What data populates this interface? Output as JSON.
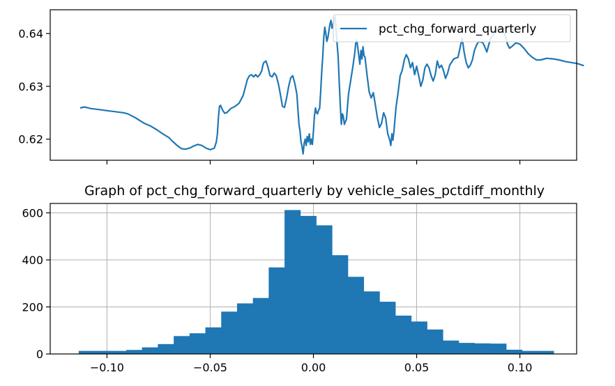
{
  "chart_data": [
    {
      "type": "line",
      "title": "",
      "legend": {
        "entries": [
          "pct_chg_forward_quarterly"
        ],
        "placement": "top-right"
      },
      "xlim": [
        -0.1275,
        0.1275
      ],
      "ylim": [
        0.616,
        0.6445
      ],
      "x_ticks": [
        -0.1,
        -0.05,
        0.0,
        0.05,
        0.1
      ],
      "y_ticks": [
        0.62,
        0.63,
        0.64
      ],
      "y_tick_labels": [
        "0.62",
        "0.63",
        "0.64"
      ],
      "grid": false,
      "series": [
        {
          "name": "pct_chg_forward_quarterly",
          "color": "#1f77b4",
          "points": [
            [
              -0.113,
              0.6259
            ],
            [
              -0.111,
              0.6261
            ],
            [
              -0.108,
              0.6258
            ],
            [
              -0.104,
              0.6256
            ],
            [
              -0.1,
              0.6254
            ],
            [
              -0.096,
              0.6252
            ],
            [
              -0.092,
              0.625
            ],
            [
              -0.09,
              0.6248
            ],
            [
              -0.088,
              0.6244
            ],
            [
              -0.086,
              0.624
            ],
            [
              -0.084,
              0.6235
            ],
            [
              -0.082,
              0.623
            ],
            [
              -0.079,
              0.6225
            ],
            [
              -0.076,
              0.6218
            ],
            [
              -0.073,
              0.621
            ],
            [
              -0.07,
              0.6203
            ],
            [
              -0.068,
              0.6195
            ],
            [
              -0.066,
              0.6188
            ],
            [
              -0.064,
              0.6182
            ],
            [
              -0.062,
              0.6181
            ],
            [
              -0.06,
              0.6183
            ],
            [
              -0.058,
              0.6187
            ],
            [
              -0.056,
              0.619
            ],
            [
              -0.054,
              0.6188
            ],
            [
              -0.052,
              0.6183
            ],
            [
              -0.05,
              0.618
            ],
            [
              -0.048,
              0.6183
            ],
            [
              -0.047,
              0.6195
            ],
            [
              -0.0465,
              0.621
            ],
            [
              -0.046,
              0.6242
            ],
            [
              -0.0455,
              0.6262
            ],
            [
              -0.045,
              0.6264
            ],
            [
              -0.044,
              0.6255
            ],
            [
              -0.043,
              0.6249
            ],
            [
              -0.042,
              0.625
            ],
            [
              -0.04,
              0.6258
            ],
            [
              -0.038,
              0.6262
            ],
            [
              -0.036,
              0.6268
            ],
            [
              -0.034,
              0.6283
            ],
            [
              -0.033,
              0.6298
            ],
            [
              -0.032,
              0.6313
            ],
            [
              -0.031,
              0.632
            ],
            [
              -0.03,
              0.6322
            ],
            [
              -0.029,
              0.6318
            ],
            [
              -0.028,
              0.6322
            ],
            [
              -0.027,
              0.6318
            ],
            [
              -0.026,
              0.6322
            ],
            [
              -0.025,
              0.633
            ],
            [
              -0.0245,
              0.634
            ],
            [
              -0.024,
              0.6345
            ],
            [
              -0.023,
              0.6348
            ],
            [
              -0.022,
              0.6336
            ],
            [
              -0.021,
              0.632
            ],
            [
              -0.02,
              0.6318
            ],
            [
              -0.019,
              0.6325
            ],
            [
              -0.018,
              0.632
            ],
            [
              -0.017,
              0.6305
            ],
            [
              -0.016,
              0.6285
            ],
            [
              -0.015,
              0.6262
            ],
            [
              -0.014,
              0.626
            ],
            [
              -0.013,
              0.6278
            ],
            [
              -0.012,
              0.63
            ],
            [
              -0.011,
              0.6316
            ],
            [
              -0.01,
              0.632
            ],
            [
              -0.009,
              0.6305
            ],
            [
              -0.008,
              0.6285
            ],
            [
              -0.0075,
              0.6255
            ],
            [
              -0.007,
              0.6228
            ],
            [
              -0.0065,
              0.6215
            ],
            [
              -0.006,
              0.6195
            ],
            [
              -0.0055,
              0.6186
            ],
            [
              -0.005,
              0.6172
            ],
            [
              -0.0045,
              0.6192
            ],
            [
              -0.004,
              0.62
            ],
            [
              -0.0035,
              0.6188
            ],
            [
              -0.003,
              0.6205
            ],
            [
              -0.0025,
              0.6195
            ],
            [
              -0.002,
              0.621
            ],
            [
              -0.0015,
              0.619
            ],
            [
              -0.001,
              0.62
            ],
            [
              -0.0005,
              0.619
            ],
            [
              0.0,
              0.6215
            ],
            [
              0.0005,
              0.6245
            ],
            [
              0.001,
              0.6259
            ],
            [
              0.0015,
              0.625
            ],
            [
              0.002,
              0.6248
            ],
            [
              0.0025,
              0.6255
            ],
            [
              0.003,
              0.6258
            ],
            [
              0.0035,
              0.629
            ],
            [
              0.004,
              0.6325
            ],
            [
              0.0045,
              0.6355
            ],
            [
              0.005,
              0.6392
            ],
            [
              0.0055,
              0.6412
            ],
            [
              0.006,
              0.64
            ],
            [
              0.0065,
              0.6385
            ],
            [
              0.007,
              0.6392
            ],
            [
              0.0075,
              0.6405
            ],
            [
              0.008,
              0.6418
            ],
            [
              0.0085,
              0.6425
            ],
            [
              0.009,
              0.641
            ],
            [
              0.0095,
              0.6415
            ],
            [
              0.01,
              0.6428
            ],
            [
              0.0105,
              0.6432
            ],
            [
              0.011,
              0.6405
            ],
            [
              0.0115,
              0.638
            ],
            [
              0.012,
              0.6355
            ],
            [
              0.0125,
              0.6308
            ],
            [
              0.013,
              0.6265
            ],
            [
              0.0135,
              0.6228
            ],
            [
              0.014,
              0.6248
            ],
            [
              0.0145,
              0.6243
            ],
            [
              0.015,
              0.6228
            ],
            [
              0.016,
              0.6238
            ],
            [
              0.017,
              0.6285
            ],
            [
              0.018,
              0.631
            ],
            [
              0.019,
              0.6335
            ],
            [
              0.02,
              0.6362
            ],
            [
              0.0205,
              0.6382
            ],
            [
              0.021,
              0.6388
            ],
            [
              0.0215,
              0.6372
            ],
            [
              0.022,
              0.6358
            ],
            [
              0.0225,
              0.6342
            ],
            [
              0.023,
              0.6368
            ],
            [
              0.0235,
              0.6352
            ],
            [
              0.024,
              0.6375
            ],
            [
              0.0245,
              0.6358
            ],
            [
              0.025,
              0.6355
            ],
            [
              0.026,
              0.632
            ],
            [
              0.027,
              0.629
            ],
            [
              0.028,
              0.6278
            ],
            [
              0.029,
              0.6288
            ],
            [
              0.03,
              0.6265
            ],
            [
              0.031,
              0.624
            ],
            [
              0.032,
              0.6222
            ],
            [
              0.033,
              0.623
            ],
            [
              0.034,
              0.625
            ],
            [
              0.035,
              0.624
            ],
            [
              0.036,
              0.621
            ],
            [
              0.037,
              0.6198
            ],
            [
              0.0375,
              0.6188
            ],
            [
              0.038,
              0.621
            ],
            [
              0.0385,
              0.6198
            ],
            [
              0.039,
              0.6215
            ],
            [
              0.04,
              0.626
            ],
            [
              0.041,
              0.6288
            ],
            [
              0.042,
              0.632
            ],
            [
              0.043,
              0.633
            ],
            [
              0.044,
              0.635
            ],
            [
              0.045,
              0.636
            ],
            [
              0.046,
              0.6352
            ],
            [
              0.047,
              0.6335
            ],
            [
              0.048,
              0.6345
            ],
            [
              0.049,
              0.6322
            ],
            [
              0.05,
              0.6338
            ],
            [
              0.051,
              0.632
            ],
            [
              0.052,
              0.63
            ],
            [
              0.053,
              0.6312
            ],
            [
              0.054,
              0.6335
            ],
            [
              0.055,
              0.6342
            ],
            [
              0.056,
              0.6335
            ],
            [
              0.057,
              0.632
            ],
            [
              0.058,
              0.631
            ],
            [
              0.059,
              0.6322
            ],
            [
              0.06,
              0.6348
            ],
            [
              0.061,
              0.6335
            ],
            [
              0.062,
              0.634
            ],
            [
              0.063,
              0.633
            ],
            [
              0.064,
              0.6315
            ],
            [
              0.065,
              0.6325
            ],
            [
              0.066,
              0.634
            ],
            [
              0.068,
              0.6352
            ],
            [
              0.07,
              0.6355
            ],
            [
              0.071,
              0.6372
            ],
            [
              0.072,
              0.6392
            ],
            [
              0.073,
              0.6365
            ],
            [
              0.074,
              0.6345
            ],
            [
              0.075,
              0.6335
            ],
            [
              0.076,
              0.634
            ],
            [
              0.077,
              0.635
            ],
            [
              0.078,
              0.6368
            ],
            [
              0.079,
              0.6378
            ],
            [
              0.08,
              0.6385
            ],
            [
              0.082,
              0.6383
            ],
            [
              0.083,
              0.6375
            ],
            [
              0.084,
              0.6365
            ],
            [
              0.085,
              0.638
            ],
            [
              0.086,
              0.6392
            ],
            [
              0.088,
              0.6402
            ],
            [
              0.09,
              0.6412
            ],
            [
              0.092,
              0.6408
            ],
            [
              0.093,
              0.6395
            ],
            [
              0.094,
              0.638
            ],
            [
              0.095,
              0.6372
            ],
            [
              0.096,
              0.6375
            ],
            [
              0.098,
              0.6382
            ],
            [
              0.1,
              0.638
            ],
            [
              0.102,
              0.6372
            ],
            [
              0.104,
              0.6362
            ],
            [
              0.106,
              0.6355
            ],
            [
              0.108,
              0.635
            ],
            [
              0.11,
              0.635
            ],
            [
              0.112,
              0.6352
            ],
            [
              0.113,
              0.6353
            ],
            [
              0.116,
              0.6352
            ],
            [
              0.119,
              0.635
            ],
            [
              0.122,
              0.6347
            ],
            [
              0.125,
              0.6345
            ],
            [
              0.128,
              0.6343
            ],
            [
              0.131,
              0.6339
            ]
          ]
        }
      ]
    },
    {
      "type": "bar",
      "title": "Graph of pct_chg_forward_quarterly by vehicle_sales_pctdiff_monthly",
      "xlim": [
        -0.1275,
        0.1275
      ],
      "ylim": [
        0,
        640
      ],
      "x_ticks": [
        -0.1,
        -0.05,
        0.0,
        0.05,
        0.1
      ],
      "x_tick_labels": [
        "−0.10",
        "−0.05",
        "0.00",
        "0.05",
        "0.10"
      ],
      "y_ticks": [
        0,
        200,
        400,
        600
      ],
      "y_tick_labels": [
        "0",
        "200",
        "400",
        "600"
      ],
      "grid": true,
      "color": "#1f77b4",
      "bins_start": -0.1137,
      "bin_width": 0.00767,
      "values": [
        13,
        13,
        13,
        17,
        28,
        42,
        76,
        88,
        113,
        180,
        215,
        238,
        368,
        612,
        587,
        547,
        420,
        328,
        266,
        222,
        163,
        138,
        104,
        57,
        47,
        45,
        44,
        18,
        13,
        13
      ]
    }
  ]
}
